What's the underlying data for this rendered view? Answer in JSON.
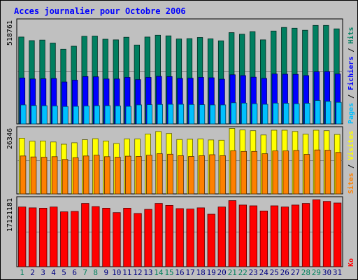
{
  "title": "Acces journalier pour Octobre 2006",
  "colors": {
    "background": "#c0c0c0",
    "hits": "#007f60",
    "files": "#0000ff",
    "pages": "#00c0ff",
    "visits": "#ffff00",
    "sites": "#ff8000",
    "kbytes": "#ff0000",
    "title": "#0000ff",
    "weekend_day": "#00805c",
    "weekday": "#000080"
  },
  "chart_data": [
    {
      "type": "bar",
      "panel": "hits_files_pages",
      "ymax_label": "518761",
      "ylim": [
        0,
        518761
      ],
      "right_label": [
        {
          "text": "Pages",
          "color": "#00c0ff"
        },
        {
          "text": " / ",
          "color": "#000000"
        },
        {
          "text": "Fichiers",
          "color": "#0000ff"
        },
        {
          "text": " / ",
          "color": "#000000"
        },
        {
          "text": "Hits",
          "color": "#007f60"
        }
      ],
      "categories": [
        "1",
        "2",
        "3",
        "4",
        "5",
        "6",
        "7",
        "8",
        "9",
        "10",
        "11",
        "12",
        "13",
        "14",
        "15",
        "16",
        "17",
        "18",
        "19",
        "20",
        "21",
        "22",
        "23",
        "24",
        "25",
        "26",
        "27",
        "28",
        "29",
        "30",
        "31"
      ],
      "series": [
        {
          "name": "Hits",
          "key": "hits",
          "values": [
            435000,
            417000,
            420000,
            405000,
            374000,
            389000,
            439000,
            440000,
            424000,
            421000,
            434000,
            395000,
            435000,
            444000,
            441000,
            425000,
            427000,
            433000,
            426000,
            416000,
            457000,
            449000,
            462000,
            421000,
            465000,
            483000,
            479000,
            469000,
            493000,
            493000,
            476000
          ]
        },
        {
          "name": "Fichiers",
          "key": "files",
          "values": [
            230000,
            225000,
            226000,
            227000,
            210000,
            219000,
            237000,
            236000,
            225000,
            225000,
            233000,
            222000,
            233000,
            238000,
            237000,
            228000,
            229000,
            233000,
            231000,
            224000,
            246000,
            242000,
            234000,
            228000,
            250000,
            249000,
            248000,
            242000,
            261000,
            262000,
            250000
          ]
        },
        {
          "name": "Pages",
          "key": "pages",
          "values": [
            95000,
            92000,
            91000,
            90000,
            87000,
            88000,
            90000,
            91000,
            91000,
            90000,
            88000,
            95000,
            96000,
            97000,
            98000,
            98000,
            97000,
            96000,
            95000,
            95000,
            106000,
            104000,
            101000,
            98000,
            104000,
            103000,
            101000,
            103000,
            117000,
            113000,
            108000
          ]
        }
      ]
    },
    {
      "type": "bar",
      "panel": "visits_sites",
      "ymax_label": "26346",
      "ylim": [
        0,
        26346
      ],
      "right_label": [
        {
          "text": "Sites",
          "color": "#ff8000"
        },
        {
          "text": " / ",
          "color": "#000000"
        },
        {
          "text": "Visites",
          "color": "#ffff00"
        }
      ],
      "categories": [
        "1",
        "2",
        "3",
        "4",
        "5",
        "6",
        "7",
        "8",
        "9",
        "10",
        "11",
        "12",
        "13",
        "14",
        "15",
        "16",
        "17",
        "18",
        "19",
        "20",
        "21",
        "22",
        "23",
        "24",
        "25",
        "26",
        "27",
        "28",
        "29",
        "30",
        "31"
      ],
      "series": [
        {
          "name": "Visites",
          "key": "visits",
          "values": [
            22300,
            21100,
            21200,
            20800,
            19900,
            20500,
            21700,
            22100,
            21200,
            20200,
            22000,
            22000,
            24000,
            25000,
            24200,
            21800,
            21900,
            22000,
            21600,
            21500,
            26200,
            25600,
            25300,
            23600,
            25500,
            25500,
            25000,
            23900,
            25500,
            25300,
            23800
          ]
        },
        {
          "name": "Sites",
          "key": "sites",
          "values": [
            15200,
            14800,
            14700,
            14900,
            13800,
            14500,
            15200,
            15500,
            14900,
            14700,
            15100,
            15000,
            15500,
            16100,
            15900,
            15300,
            15000,
            15300,
            15700,
            15300,
            17300,
            17000,
            17000,
            16100,
            17200,
            17200,
            17400,
            15800,
            17600,
            17500,
            16600
          ]
        }
      ]
    },
    {
      "type": "bar",
      "panel": "kbytes",
      "ymax_label": "17121181",
      "ylim": [
        0,
        17121181
      ],
      "right_label": [
        {
          "text": "Ko",
          "color": "#ff0000"
        }
      ],
      "categories": [
        "1",
        "2",
        "3",
        "4",
        "5",
        "6",
        "7",
        "8",
        "9",
        "10",
        "11",
        "12",
        "13",
        "14",
        "15",
        "16",
        "17",
        "18",
        "19",
        "20",
        "21",
        "22",
        "23",
        "24",
        "25",
        "26",
        "27",
        "28",
        "29",
        "30",
        "31"
      ],
      "series": [
        {
          "name": "Ko",
          "key": "kbytes",
          "values": [
            14900000,
            14700000,
            14600000,
            14900000,
            13700000,
            13800000,
            15800000,
            15000000,
            14600000,
            13500000,
            14600000,
            13300000,
            14300000,
            15800000,
            15300000,
            14500000,
            14400000,
            14700000,
            13100000,
            14900000,
            16500000,
            15400000,
            15200000,
            13900000,
            15200000,
            14900000,
            15400000,
            15800000,
            16700000,
            16300000,
            15900000
          ]
        }
      ]
    }
  ],
  "x_axis": {
    "days": [
      "1",
      "2",
      "3",
      "4",
      "5",
      "6",
      "7",
      "8",
      "9",
      "10",
      "11",
      "12",
      "13",
      "14",
      "15",
      "16",
      "17",
      "18",
      "19",
      "20",
      "21",
      "22",
      "23",
      "24",
      "25",
      "26",
      "27",
      "28",
      "29",
      "30",
      "31"
    ],
    "weekend_days": [
      "1",
      "7",
      "8",
      "14",
      "15",
      "21",
      "22",
      "28",
      "29"
    ]
  }
}
